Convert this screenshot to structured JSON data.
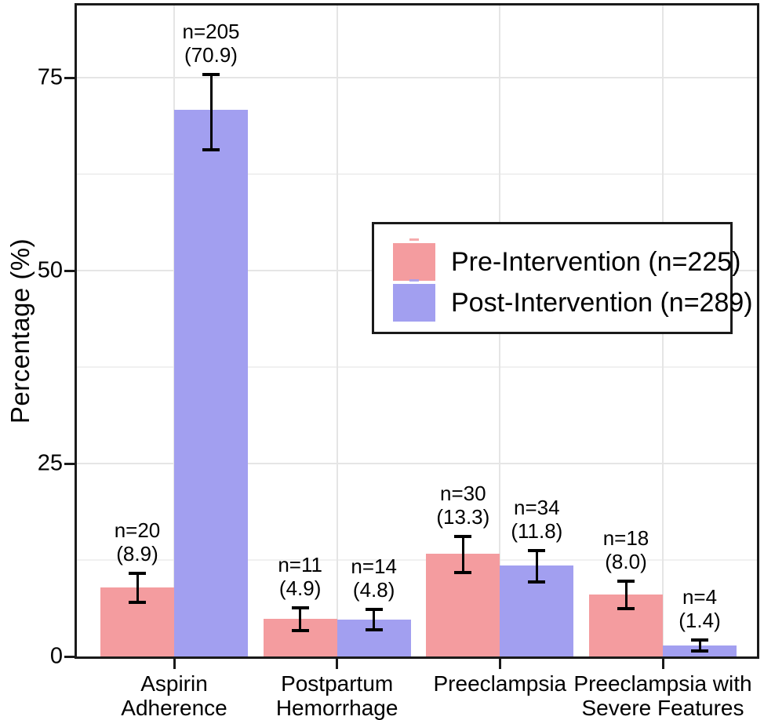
{
  "chart_data": {
    "type": "bar",
    "title": "",
    "xlabel": "",
    "ylabel": "Percentage (%)",
    "ylim": [
      0,
      84.4
    ],
    "grid": true,
    "legend_position": "inside upper right",
    "y_tick_values": [
      0,
      25,
      50,
      75
    ],
    "y_tick_labels": [
      "0",
      "25",
      "50",
      "75"
    ],
    "y_major_gridlines": [
      25,
      50,
      75
    ],
    "y_minor_gridlines": [
      12.5,
      37.5,
      62.5
    ],
    "categories": [
      {
        "lines": [
          "Aspirin",
          "Adherence"
        ]
      },
      {
        "lines": [
          "Postpartum",
          "Hemorrhage"
        ]
      },
      {
        "lines": [
          "Preeclampsia"
        ]
      },
      {
        "lines": [
          "Preeclampsia with",
          "Severe Features"
        ]
      }
    ],
    "series": [
      {
        "name": "Pre-Intervention (n=225)",
        "color": "#F49C9F",
        "values": [
          8.9,
          4.9,
          13.3,
          8.0
        ],
        "counts": [
          20,
          11,
          30,
          18
        ],
        "error_low": [
          7.0,
          3.4,
          10.9,
          6.2
        ],
        "error_high": [
          10.8,
          6.3,
          15.6,
          9.8
        ],
        "bar_labels": [
          [
            "n=20",
            "(8.9)"
          ],
          [
            "n=11",
            "(4.9)"
          ],
          [
            "n=30",
            "(13.3)"
          ],
          [
            "n=18",
            "(8.0)"
          ]
        ]
      },
      {
        "name": "Post-Intervention (n=289)",
        "color": "#A29FF0",
        "values": [
          70.9,
          4.8,
          11.8,
          1.4
        ],
        "counts": [
          205,
          14,
          34,
          4
        ],
        "error_low": [
          65.7,
          3.5,
          9.7,
          0.7
        ],
        "error_high": [
          75.5,
          6.1,
          13.7,
          2.1
        ],
        "bar_labels": [
          [
            "n=205",
            "(70.9)"
          ],
          [
            "n=14",
            "(4.8)"
          ],
          [
            "n=34",
            "(11.8)"
          ],
          [
            "n=4",
            "(1.4)"
          ]
        ]
      }
    ],
    "error_bar_color": "#000000"
  },
  "styles": {
    "background": "#FFFFFF",
    "panel_border_color": "#1A1A1A",
    "grid_major_color": "#E5E5E5",
    "grid_minor_color": "#F0F0F0",
    "tick_color": "#1A1A1A",
    "text_color": "#000000"
  }
}
